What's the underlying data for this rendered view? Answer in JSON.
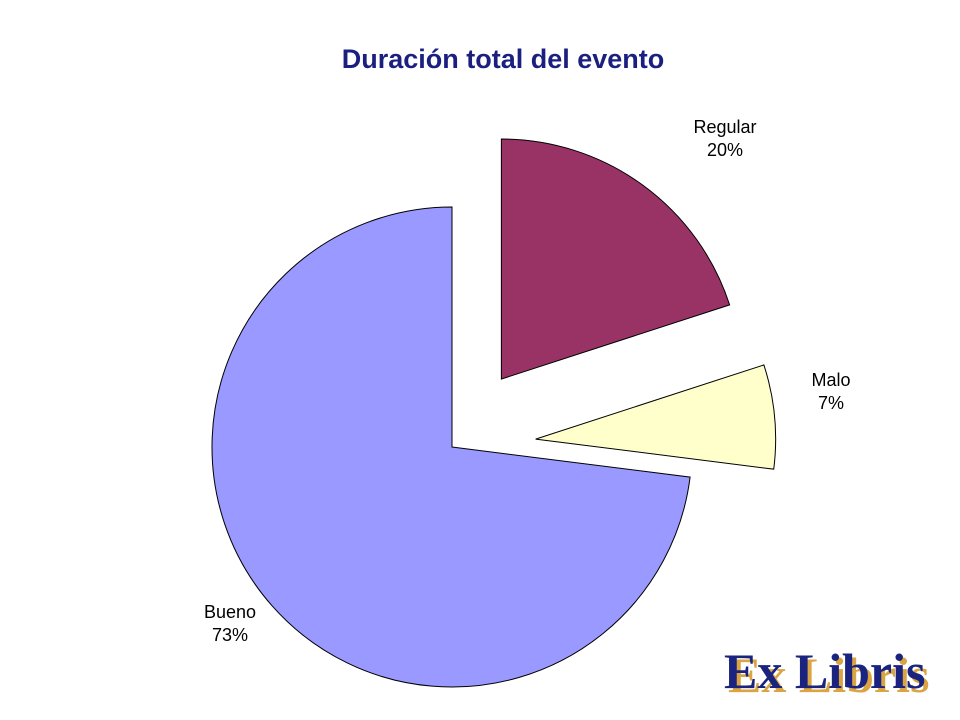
{
  "chart_data": {
    "type": "pie",
    "title": "Duración total del evento",
    "slices": [
      {
        "label": "Regular",
        "value": 20,
        "value_label": "20%",
        "color": "#993366",
        "exploded": true
      },
      {
        "label": "Malo",
        "value": 7,
        "value_label": "7%",
        "color": "#ffffcc",
        "exploded": true
      },
      {
        "label": "Bueno",
        "value": 73,
        "value_label": "73%",
        "color": "#9999ff",
        "exploded": false
      }
    ],
    "start_angle_deg": 0,
    "direction": "clockwise",
    "data_labels": "label-and-percent"
  },
  "logo": {
    "text": "Ex Libris",
    "color": "#1a237e",
    "shadow_color": "#d9a441"
  }
}
